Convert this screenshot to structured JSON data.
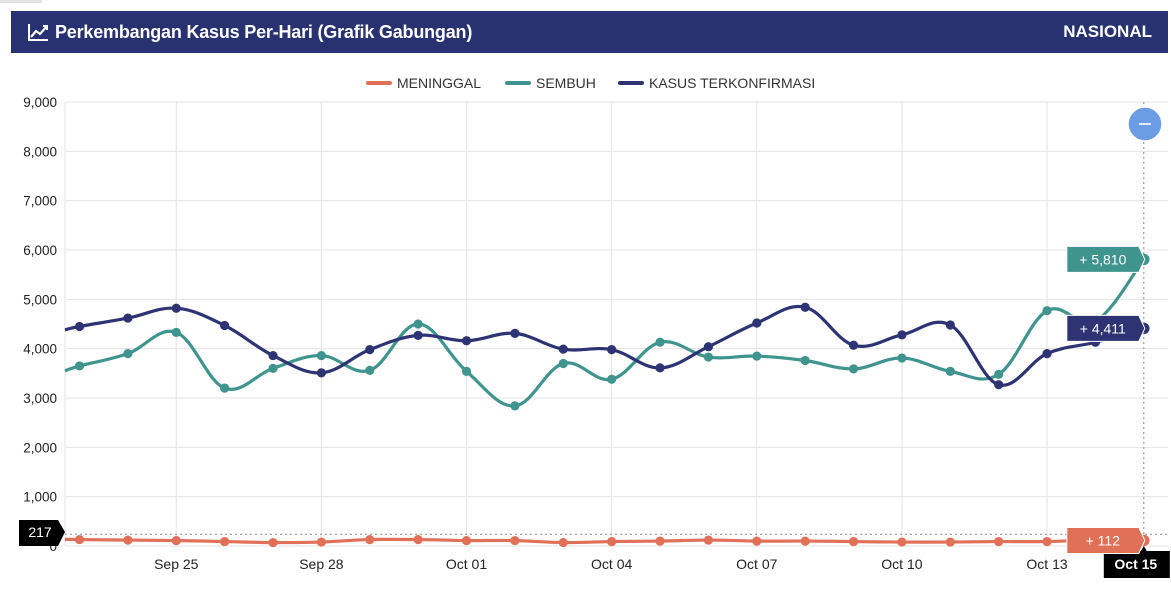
{
  "header": {
    "title": "Perkembangan Kasus Per-Hari (Grafik Gabungan)",
    "region": "NASIONAL",
    "title_icon": "line-chart-icon"
  },
  "colors": {
    "header_bg": "#283270",
    "meninggal": "#e07158",
    "sembuh": "#3f958d",
    "kasus": "#2d3373",
    "zoom_button": "#6a9de4"
  },
  "controls": {
    "zoom_out_icon": "minus-icon",
    "zoom_out_label": "–"
  },
  "chart_data": {
    "type": "line",
    "legend_position": "top-center",
    "grid": true,
    "ylim": [
      0,
      9000
    ],
    "y_ticks": [
      "9,000",
      "8,000",
      "7,000",
      "6,000",
      "5,000",
      "4,000",
      "3,000",
      "2,000",
      "1,000",
      "0"
    ],
    "x_ticks": [
      {
        "label": "Sep 25",
        "day": 2
      },
      {
        "label": "Sep 28",
        "day": 5
      },
      {
        "label": "Oct 01",
        "day": 8
      },
      {
        "label": "Oct 04",
        "day": 11
      },
      {
        "label": "Oct 07",
        "day": 14
      },
      {
        "label": "Oct 10",
        "day": 17
      },
      {
        "label": "Oct 13",
        "day": 20
      }
    ],
    "x_range": [
      -0.3,
      22.5
    ],
    "x_days": [
      0,
      1,
      2,
      3,
      4,
      5,
      6,
      7,
      8,
      9,
      10,
      11,
      12,
      13,
      14,
      15,
      16,
      17,
      18,
      19,
      20,
      21,
      22
    ],
    "series": [
      {
        "name": "MENINGGAL",
        "key": "meninggal",
        "values": [
          130,
          120,
          110,
          90,
          70,
          80,
          130,
          130,
          110,
          110,
          70,
          90,
          100,
          120,
          100,
          100,
          90,
          80,
          80,
          90,
          90,
          120,
          112
        ]
      },
      {
        "name": "SEMBUH",
        "key": "sembuh",
        "values": [
          3650,
          3900,
          4330,
          3200,
          3600,
          3860,
          3560,
          4500,
          3540,
          2840,
          3700,
          3380,
          4130,
          3830,
          3850,
          3760,
          3590,
          3810,
          3540,
          3480,
          4770,
          4560,
          5810
        ]
      },
      {
        "name": "KASUS TERKONFIRMASI",
        "key": "kasus",
        "values": [
          4450,
          4620,
          4820,
          4470,
          3860,
          3510,
          3980,
          4270,
          4160,
          4310,
          3990,
          3980,
          3610,
          4040,
          4520,
          4840,
          4070,
          4280,
          4480,
          3270,
          3900,
          4130,
          4411
        ]
      }
    ],
    "tooltip": {
      "x_label": "Oct 15",
      "y_crosshair_label": "217",
      "values": [
        {
          "key": "sembuh",
          "text": "+ 5,810"
        },
        {
          "key": "kasus",
          "text": "+ 4,411"
        },
        {
          "key": "meninggal",
          "text": "+ 112"
        }
      ]
    }
  }
}
